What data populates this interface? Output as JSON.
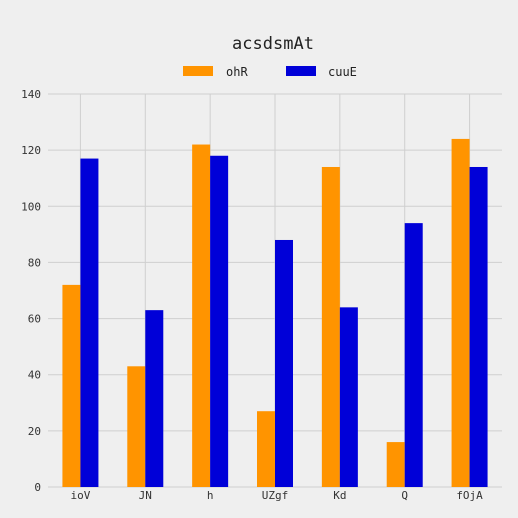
{
  "chart_data": {
    "type": "bar",
    "title": "acsdsmAt",
    "xlabel": "",
    "ylabel": "",
    "categories": [
      "ioV",
      "JN",
      "h",
      "UZgf",
      "Kd",
      "Q",
      "fOjA"
    ],
    "series": [
      {
        "name": "ohR",
        "color": "#ff9400",
        "values": [
          72,
          43,
          122,
          27,
          114,
          16,
          124
        ]
      },
      {
        "name": "cuuE",
        "color": "#0000d8",
        "values": [
          117,
          63,
          118,
          88,
          64,
          94,
          114
        ]
      }
    ],
    "ylim": [
      0,
      140
    ],
    "yticks": [
      0,
      20,
      40,
      60,
      80,
      100,
      120,
      140
    ],
    "grid": true,
    "legend_position": "top-center"
  }
}
